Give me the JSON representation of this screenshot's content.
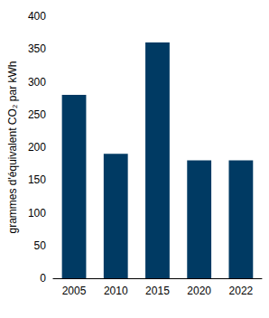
{
  "chart_data": {
    "type": "bar",
    "y_label": "grammes d'équivalent CO₂ par kWh",
    "categories": [
      "2005",
      "2010",
      "2015",
      "2020",
      "2022"
    ],
    "values": [
      280,
      190,
      360,
      180,
      180
    ],
    "color": "#003a63",
    "ylim": [
      0,
      400
    ],
    "yticks": [
      0,
      50,
      100,
      150,
      200,
      250,
      300,
      350,
      400
    ],
    "grid": false
  }
}
